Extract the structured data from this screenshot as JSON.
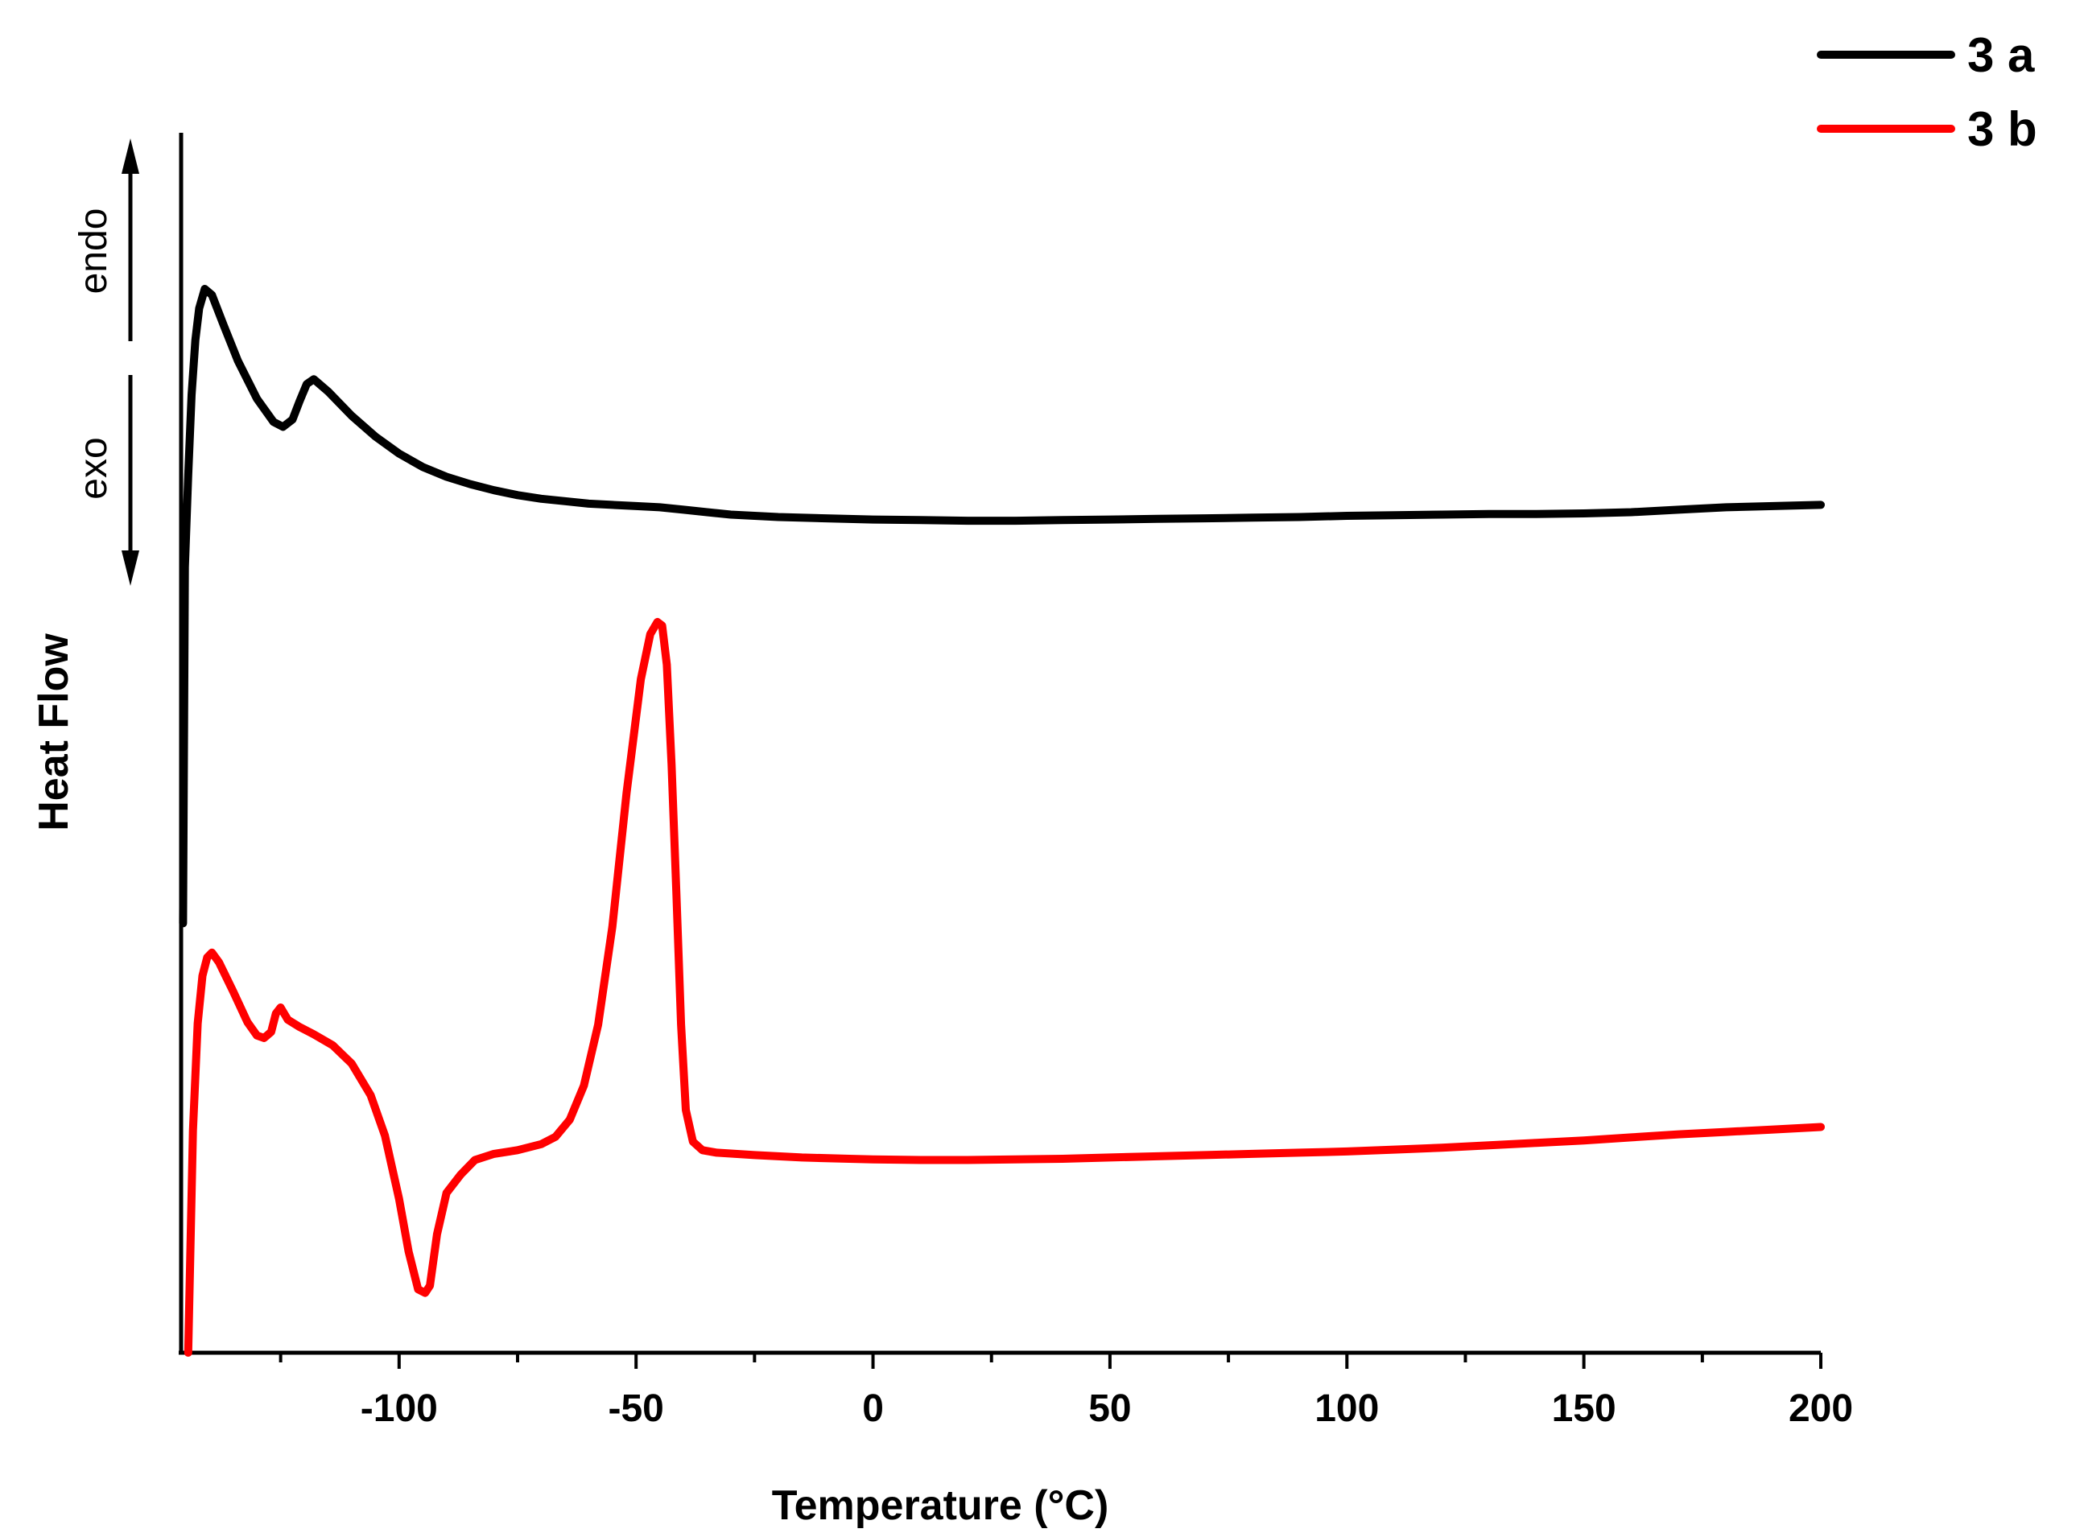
{
  "chart_data": {
    "type": "line",
    "title": "",
    "xlabel": "Temperature (°C)",
    "ylabel": "Heat Flow",
    "xlim": [
      -146,
      200
    ],
    "ylim": [
      0,
      100
    ],
    "x_ticks": [
      -100,
      -50,
      0,
      50,
      100,
      150,
      200
    ],
    "x_tick_labels": [
      "-100",
      "-50",
      "0",
      "50",
      "100",
      "150",
      "200"
    ],
    "x_minor_ticks": [
      -125,
      -75,
      -25,
      25,
      75,
      125,
      175
    ],
    "grid": false,
    "legend_position": "top-right",
    "direction_labels": {
      "up": "endo",
      "down": "exo"
    },
    "series": [
      {
        "name": "3 a",
        "color": "#000000",
        "points": [
          [
            -145.6,
            35.2
          ],
          [
            -145.2,
            64.4
          ],
          [
            -144.5,
            71.9
          ],
          [
            -143.8,
            78.5
          ],
          [
            -143.0,
            83.0
          ],
          [
            -142.2,
            85.6
          ],
          [
            -141.0,
            87.2
          ],
          [
            -139.5,
            86.7
          ],
          [
            -137.0,
            84.2
          ],
          [
            -134.0,
            81.3
          ],
          [
            -130.0,
            78.2
          ],
          [
            -126.5,
            76.3
          ],
          [
            -124.5,
            75.9
          ],
          [
            -122.5,
            76.5
          ],
          [
            -121.0,
            78.0
          ],
          [
            -119.5,
            79.4
          ],
          [
            -118.0,
            79.8
          ],
          [
            -115.0,
            78.8
          ],
          [
            -110.0,
            76.8
          ],
          [
            -105.0,
            75.1
          ],
          [
            -100.0,
            73.7
          ],
          [
            -95.0,
            72.6
          ],
          [
            -90.0,
            71.8
          ],
          [
            -85.0,
            71.2
          ],
          [
            -80.0,
            70.7
          ],
          [
            -75.0,
            70.3
          ],
          [
            -70.0,
            70.0
          ],
          [
            -65.0,
            69.8
          ],
          [
            -60.0,
            69.6
          ],
          [
            -55.0,
            69.5
          ],
          [
            -50.0,
            69.4
          ],
          [
            -45.0,
            69.3
          ],
          [
            -40.0,
            69.1
          ],
          [
            -35.0,
            68.9
          ],
          [
            -30.0,
            68.7
          ],
          [
            -25.0,
            68.6
          ],
          [
            -20.0,
            68.5
          ],
          [
            -10.0,
            68.4
          ],
          [
            0.0,
            68.3
          ],
          [
            10.0,
            68.25
          ],
          [
            20.0,
            68.2
          ],
          [
            30.0,
            68.2
          ],
          [
            40.0,
            68.25
          ],
          [
            50.0,
            68.3
          ],
          [
            60.0,
            68.35
          ],
          [
            70.0,
            68.4
          ],
          [
            80.0,
            68.45
          ],
          [
            90.0,
            68.5
          ],
          [
            100.0,
            68.6
          ],
          [
            110.0,
            68.65
          ],
          [
            120.0,
            68.7
          ],
          [
            130.0,
            68.75
          ],
          [
            140.0,
            68.75
          ],
          [
            150.0,
            68.8
          ],
          [
            160.0,
            68.9
          ],
          [
            170.0,
            69.1
          ],
          [
            180.0,
            69.3
          ],
          [
            190.0,
            69.4
          ],
          [
            200.0,
            69.5
          ]
        ]
      },
      {
        "name": "3 b",
        "color": "#ff0000",
        "points": [
          [
            -144.5,
            0.0
          ],
          [
            -143.5,
            18.2
          ],
          [
            -142.5,
            27.0
          ],
          [
            -141.5,
            30.9
          ],
          [
            -140.5,
            32.4
          ],
          [
            -139.5,
            32.8
          ],
          [
            -138.0,
            32.0
          ],
          [
            -135.0,
            29.6
          ],
          [
            -132.0,
            27.1
          ],
          [
            -130.0,
            26.0
          ],
          [
            -128.5,
            25.8
          ],
          [
            -127.0,
            26.3
          ],
          [
            -126.0,
            27.8
          ],
          [
            -125.0,
            28.3
          ],
          [
            -123.5,
            27.3
          ],
          [
            -121.0,
            26.7
          ],
          [
            -118.0,
            26.1
          ],
          [
            -114.0,
            25.2
          ],
          [
            -110.0,
            23.7
          ],
          [
            -106.0,
            21.1
          ],
          [
            -103.0,
            17.8
          ],
          [
            -100.0,
            12.6
          ],
          [
            -98.0,
            8.3
          ],
          [
            -96.0,
            5.2
          ],
          [
            -94.5,
            4.9
          ],
          [
            -93.5,
            5.5
          ],
          [
            -92.0,
            9.7
          ],
          [
            -90.0,
            13.1
          ],
          [
            -87.0,
            14.6
          ],
          [
            -84.0,
            15.8
          ],
          [
            -80.0,
            16.3
          ],
          [
            -75.0,
            16.6
          ],
          [
            -70.0,
            17.1
          ],
          [
            -67.0,
            17.7
          ],
          [
            -64.0,
            19.1
          ],
          [
            -61.0,
            21.9
          ],
          [
            -58.0,
            26.9
          ],
          [
            -55.0,
            34.9
          ],
          [
            -52.0,
            45.9
          ],
          [
            -49.0,
            55.2
          ],
          [
            -47.0,
            58.9
          ],
          [
            -45.5,
            59.9
          ],
          [
            -44.5,
            59.6
          ],
          [
            -43.5,
            56.4
          ],
          [
            -42.5,
            48.2
          ],
          [
            -41.5,
            37.8
          ],
          [
            -40.5,
            26.9
          ],
          [
            -39.5,
            19.9
          ],
          [
            -38.0,
            17.3
          ],
          [
            -36.0,
            16.6
          ],
          [
            -33.0,
            16.4
          ],
          [
            -25.0,
            16.2
          ],
          [
            -15.0,
            16.0
          ],
          [
            -5.0,
            15.9
          ],
          [
            0.0,
            15.85
          ],
          [
            10.0,
            15.8
          ],
          [
            20.0,
            15.8
          ],
          [
            30.0,
            15.85
          ],
          [
            40.0,
            15.9
          ],
          [
            50.0,
            16.0
          ],
          [
            60.0,
            16.1
          ],
          [
            70.0,
            16.2
          ],
          [
            80.0,
            16.3
          ],
          [
            90.0,
            16.4
          ],
          [
            100.0,
            16.5
          ],
          [
            110.0,
            16.65
          ],
          [
            120.0,
            16.8
          ],
          [
            130.0,
            17.0
          ],
          [
            140.0,
            17.2
          ],
          [
            150.0,
            17.4
          ],
          [
            160.0,
            17.65
          ],
          [
            170.0,
            17.9
          ],
          [
            180.0,
            18.1
          ],
          [
            190.0,
            18.3
          ],
          [
            200.0,
            18.5
          ]
        ]
      }
    ]
  }
}
